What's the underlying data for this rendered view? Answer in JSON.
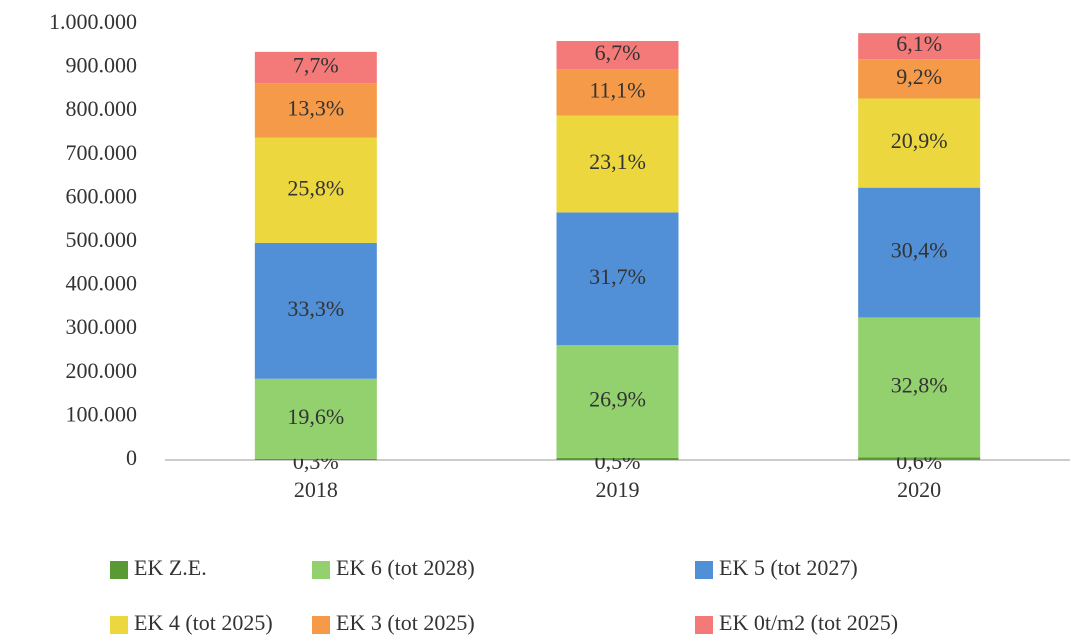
{
  "chart_data": {
    "type": "stacked_bar",
    "categories": [
      "2018",
      "2019",
      "2020"
    ],
    "series": [
      {
        "name": "EK Z.E.",
        "color": "#5a9a34",
        "values": [
          2800,
          4800,
          5900
        ],
        "value_labels": [
          "0,3%",
          "0,5%",
          "0,6%"
        ]
      },
      {
        "name": "EK 6 (tot 2028)",
        "color": "#93d16f",
        "values": [
          183500,
          258500,
          321100
        ],
        "value_labels": [
          "19,6%",
          "26,9%",
          "32,8%"
        ]
      },
      {
        "name": "EK 5 (tot 2027)",
        "color": "#518fd6",
        "values": [
          311700,
          304600,
          297600
        ],
        "value_labels": [
          "33,3%",
          "31,7%",
          "30,4%"
        ]
      },
      {
        "name": "EK 4 (tot 2025)",
        "color": "#ecd83e",
        "values": [
          241500,
          222000,
          204600
        ],
        "value_labels": [
          "25,8%",
          "23,1%",
          "20,9%"
        ]
      },
      {
        "name": "EK 3 (tot 2025)",
        "color": "#f59a48",
        "values": [
          124500,
          106700,
          90100
        ],
        "value_labels": [
          "13,3%",
          "11,1%",
          "9,2%"
        ]
      },
      {
        "name": "EK 0t/m2 (tot 2025)",
        "color": "#f47a7a",
        "values": [
          72100,
          64400,
          59700
        ],
        "value_labels": [
          "7,7%",
          "6,7%",
          "6,1%"
        ]
      }
    ],
    "ylim": [
      0,
      1000000
    ],
    "yticks": [
      0,
      {
        "value": 100000,
        "label": "100.000"
      },
      {
        "value": 200000,
        "label": "200.000"
      },
      {
        "value": 300000,
        "label": "300.000"
      },
      {
        "value": 400000,
        "label": "400.000"
      },
      {
        "value": 500000,
        "label": "500.000"
      },
      {
        "value": 600000,
        "label": "600.000"
      },
      {
        "value": 700000,
        "label": "700.000"
      },
      {
        "value": 800000,
        "label": "800.000"
      },
      {
        "value": 900000,
        "label": "900.000"
      },
      {
        "value": 1000000,
        "label": "1.000.000"
      }
    ],
    "legend": "bottom"
  }
}
